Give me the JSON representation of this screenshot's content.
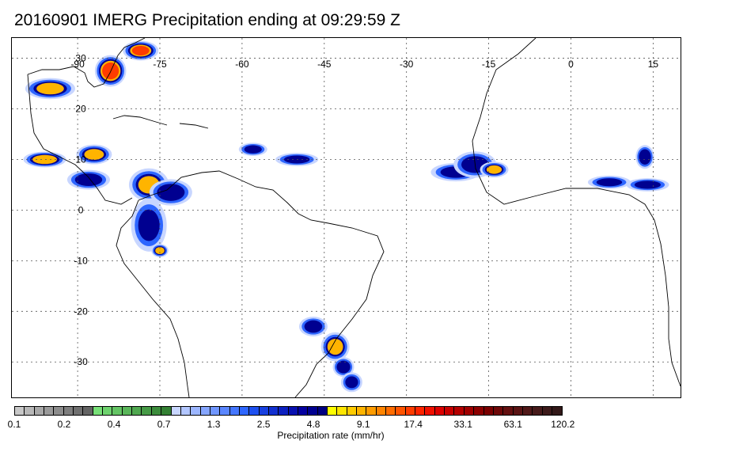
{
  "title": "20160901 IMERG Precipitation ending at 09:29:59 Z",
  "map": {
    "lon_labels": [
      "-90",
      "-75",
      "-60",
      "-45",
      "-30",
      "-15",
      "0",
      "15"
    ],
    "lat_labels": [
      "30",
      "20",
      "10",
      "0",
      "-10",
      "-20",
      "-30"
    ]
  },
  "colorbar": {
    "label": "Precipitation rate (mm/hr)",
    "ticks": [
      "0.1",
      "0.2",
      "0.4",
      "0.7",
      "1.3",
      "2.5",
      "4.8",
      "9.1",
      "17.4",
      "33.1",
      "63.1",
      "120.2"
    ],
    "colors": [
      "#c8c8c8",
      "#b8b8b8",
      "#a8a8a8",
      "#9a9a9a",
      "#8c8c8c",
      "#7e7e7e",
      "#707070",
      "#646464",
      "#78e078",
      "#6ed26e",
      "#64c464",
      "#5ab65a",
      "#50a850",
      "#469a46",
      "#3c8c3c",
      "#338033",
      "#c8d6ff",
      "#b2c6ff",
      "#9cb6ff",
      "#86a6ff",
      "#7096ff",
      "#5a86ff",
      "#4476ff",
      "#2e66ff",
      "#1e50f0",
      "#1840e0",
      "#1230d0",
      "#0c20c0",
      "#0810b0",
      "#0400a0",
      "#000090",
      "#000080",
      "#ffff00",
      "#ffe600",
      "#ffcc00",
      "#ffb400",
      "#ff9c00",
      "#ff8400",
      "#ff6c00",
      "#ff5400",
      "#ff3c00",
      "#ff2400",
      "#f01000",
      "#dc0000",
      "#c80000",
      "#b40000",
      "#a00000",
      "#8c0000",
      "#7a0000",
      "#6e0808",
      "#641010",
      "#5a1414",
      "#501818",
      "#461a1a",
      "#3c1a1a",
      "#321818"
    ]
  },
  "chart_data": {
    "type": "heatmap",
    "title": "20160901 IMERG Precipitation ending at 09:29:59 Z",
    "xlabel": "",
    "ylabel": "",
    "colorbar_label": "Precipitation rate (mm/hr)",
    "lon_ticks": [
      -90,
      -75,
      -60,
      -45,
      -30,
      -15,
      0,
      15
    ],
    "lat_ticks": [
      30,
      20,
      10,
      0,
      -10,
      -20,
      -30
    ],
    "lon_range": [
      -102,
      20
    ],
    "lat_range": [
      34,
      -37
    ],
    "grid": true,
    "colorbar_ticks": [
      0.1,
      0.2,
      0.4,
      0.7,
      1.3,
      2.5,
      4.8,
      9.1,
      17.4,
      33.1,
      63.1,
      120.2
    ],
    "features": [
      {
        "lon": -84,
        "lat": 27.5,
        "peak": 33,
        "w": 2.2,
        "h": 2.4
      },
      {
        "lon": -78.5,
        "lat": 31.5,
        "peak": 20,
        "w": 2.5,
        "h": 1.5
      },
      {
        "lon": -95,
        "lat": 24,
        "peak": 12,
        "w": 3.5,
        "h": 1.6
      },
      {
        "lon": -96,
        "lat": 10,
        "peak": 15,
        "w": 3,
        "h": 1.2
      },
      {
        "lon": -87,
        "lat": 11,
        "peak": 12,
        "w": 2.5,
        "h": 1.5
      },
      {
        "lon": -88,
        "lat": 6,
        "peak": 8,
        "w": 3,
        "h": 1.5
      },
      {
        "lon": -77,
        "lat": 5,
        "peak": 10,
        "w": 2.8,
        "h": 2.5
      },
      {
        "lon": -73,
        "lat": 3.5,
        "peak": 9,
        "w": 3,
        "h": 2
      },
      {
        "lon": -77,
        "lat": -3,
        "peak": 5,
        "w": 2.5,
        "h": 4
      },
      {
        "lon": -75,
        "lat": -8,
        "peak": 10,
        "w": 1.2,
        "h": 1
      },
      {
        "lon": -58,
        "lat": 12,
        "peak": 6,
        "w": 2,
        "h": 1
      },
      {
        "lon": -50,
        "lat": 10,
        "peak": 5,
        "w": 3,
        "h": 1
      },
      {
        "lon": -21,
        "lat": 7.5,
        "peak": 6,
        "w": 3.5,
        "h": 1.4
      },
      {
        "lon": -17.5,
        "lat": 9,
        "peak": 8,
        "w": 3,
        "h": 2
      },
      {
        "lon": -14,
        "lat": 8,
        "peak": 10,
        "w": 2,
        "h": 1.2
      },
      {
        "lon": 13.5,
        "lat": 10.5,
        "peak": 9,
        "w": 1.3,
        "h": 1.8
      },
      {
        "lon": 7,
        "lat": 5.5,
        "peak": 5,
        "w": 3,
        "h": 1
      },
      {
        "lon": 14,
        "lat": 5,
        "peak": 6,
        "w": 3,
        "h": 1
      },
      {
        "lon": -47,
        "lat": -23,
        "peak": 7,
        "w": 2,
        "h": 1.5
      },
      {
        "lon": -43,
        "lat": -27,
        "peak": 12,
        "w": 2,
        "h": 2.2
      },
      {
        "lon": -41.5,
        "lat": -31,
        "peak": 8,
        "w": 1.5,
        "h": 1.5
      },
      {
        "lon": -40,
        "lat": -34,
        "peak": 5,
        "w": 1.5,
        "h": 1.5
      }
    ]
  }
}
